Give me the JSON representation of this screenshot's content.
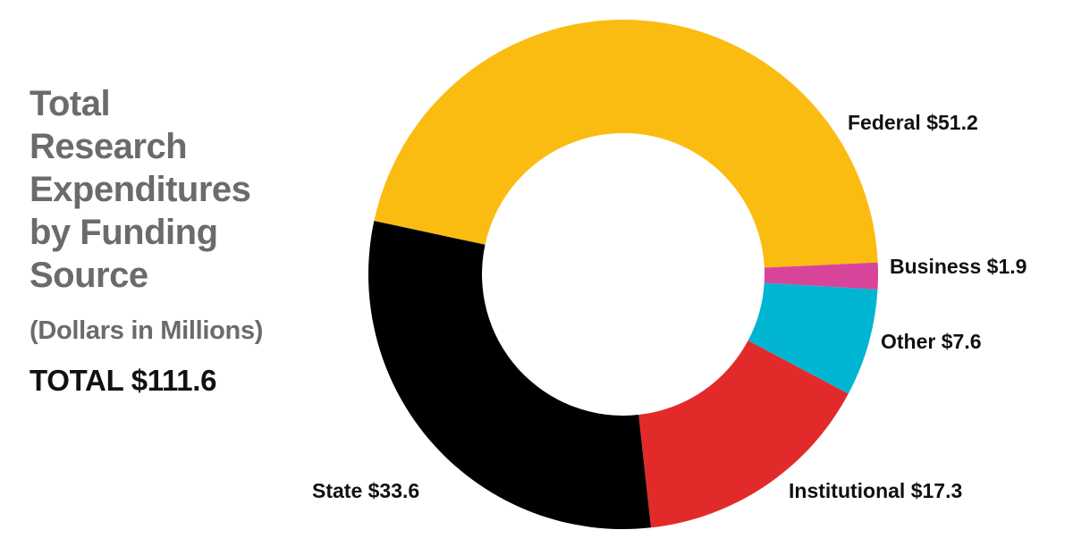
{
  "title_lines": [
    "Total",
    "Research",
    "Expenditures",
    "by Funding",
    "Source"
  ],
  "subtitle": "(Dollars in Millions)",
  "total": "TOTAL $111.6",
  "chart_data": {
    "type": "pie",
    "variant": "donut",
    "unit": "Dollars in Millions",
    "total": 111.6,
    "slices": [
      {
        "name": "Federal",
        "value": 51.2,
        "label": "Federal $51.2",
        "color": "#FBBC12"
      },
      {
        "name": "Business",
        "value": 1.9,
        "label": "Business $1.9",
        "color": "#D9449B"
      },
      {
        "name": "Other",
        "value": 7.6,
        "label": "Other $7.6",
        "color": "#00B5D1"
      },
      {
        "name": "Institutional",
        "value": 17.3,
        "label": "Institutional $17.3",
        "color": "#E32A2A"
      },
      {
        "name": "State",
        "value": 33.6,
        "label": "State $33.6",
        "color": "#000000"
      }
    ]
  }
}
